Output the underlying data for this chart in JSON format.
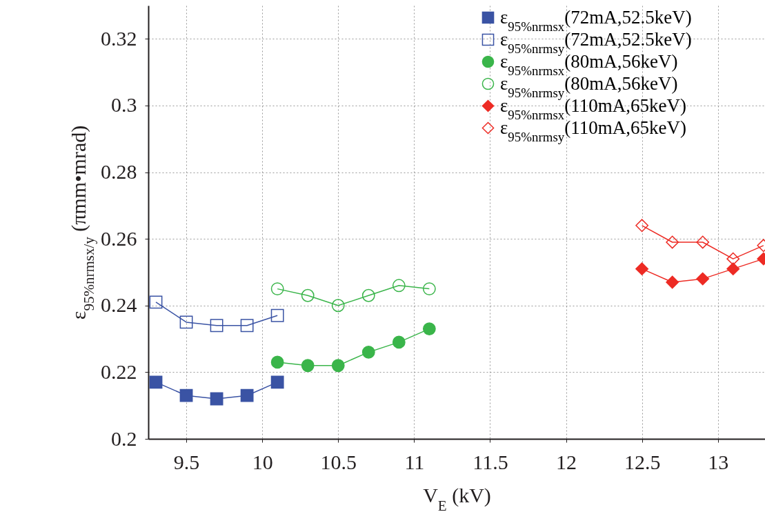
{
  "chart_data": {
    "type": "line",
    "xlabel": "V$_{E}$ (kV)",
    "ylabel": "ε$_{95%nrmsx/y}$ (πmm•mrad)",
    "xlim": [
      9.25,
      13.31
    ],
    "xticks": [
      9.5,
      10,
      10.5,
      11,
      11.5,
      12,
      12.5,
      13
    ],
    "ylim": [
      0.2,
      0.33
    ],
    "yticks": [
      0.2,
      0.22,
      0.24,
      0.26,
      0.28,
      0.3,
      0.32
    ],
    "grid": true,
    "legend": "top right",
    "line_style": "solid",
    "series": [
      {
        "name": "ε$_{95%nrmsx}$(72mA,52.5keV)",
        "color": "#3a53a4",
        "marker": "square",
        "x": [
          9.3,
          9.5,
          9.7,
          9.9,
          10.1
        ],
        "values": [
          0.217,
          0.213,
          0.212,
          0.213,
          0.217
        ]
      },
      {
        "name": "ε$_{95%nrmsy}$(72mA,52.5keV)",
        "color": "#3a53a4",
        "marker": "square-open",
        "x": [
          9.3,
          9.5,
          9.7,
          9.9,
          10.1
        ],
        "values": [
          0.241,
          0.235,
          0.234,
          0.234,
          0.237
        ]
      },
      {
        "name": "ε$_{95%nrmsx}$(80mA,56keV)",
        "color": "#3ab54a",
        "marker": "circle",
        "x": [
          10.1,
          10.3,
          10.5,
          10.7,
          10.9,
          11.1
        ],
        "values": [
          0.223,
          0.222,
          0.222,
          0.226,
          0.229,
          0.233
        ]
      },
      {
        "name": "ε$_{95%nrmsy}$(80mA,56keV)",
        "color": "#3ab54a",
        "marker": "circle-open",
        "x": [
          10.1,
          10.3,
          10.5,
          10.7,
          10.9,
          11.1
        ],
        "values": [
          0.245,
          0.243,
          0.24,
          0.243,
          0.246,
          0.245
        ]
      },
      {
        "name": "ε$_{95%nrmsx}$(110mA,65keV)",
        "color": "#ed2b24",
        "marker": "diamond",
        "x": [
          12.5,
          12.7,
          12.9,
          13.1,
          13.3
        ],
        "values": [
          0.251,
          0.247,
          0.248,
          0.251,
          0.254
        ]
      },
      {
        "name": "ε$_{95%nrmsy}$(110mA,65keV)",
        "color": "#ed2b24",
        "marker": "diamond-open",
        "x": [
          12.5,
          12.7,
          12.9,
          13.1,
          13.3
        ],
        "values": [
          0.264,
          0.259,
          0.259,
          0.254,
          0.258
        ]
      }
    ]
  }
}
